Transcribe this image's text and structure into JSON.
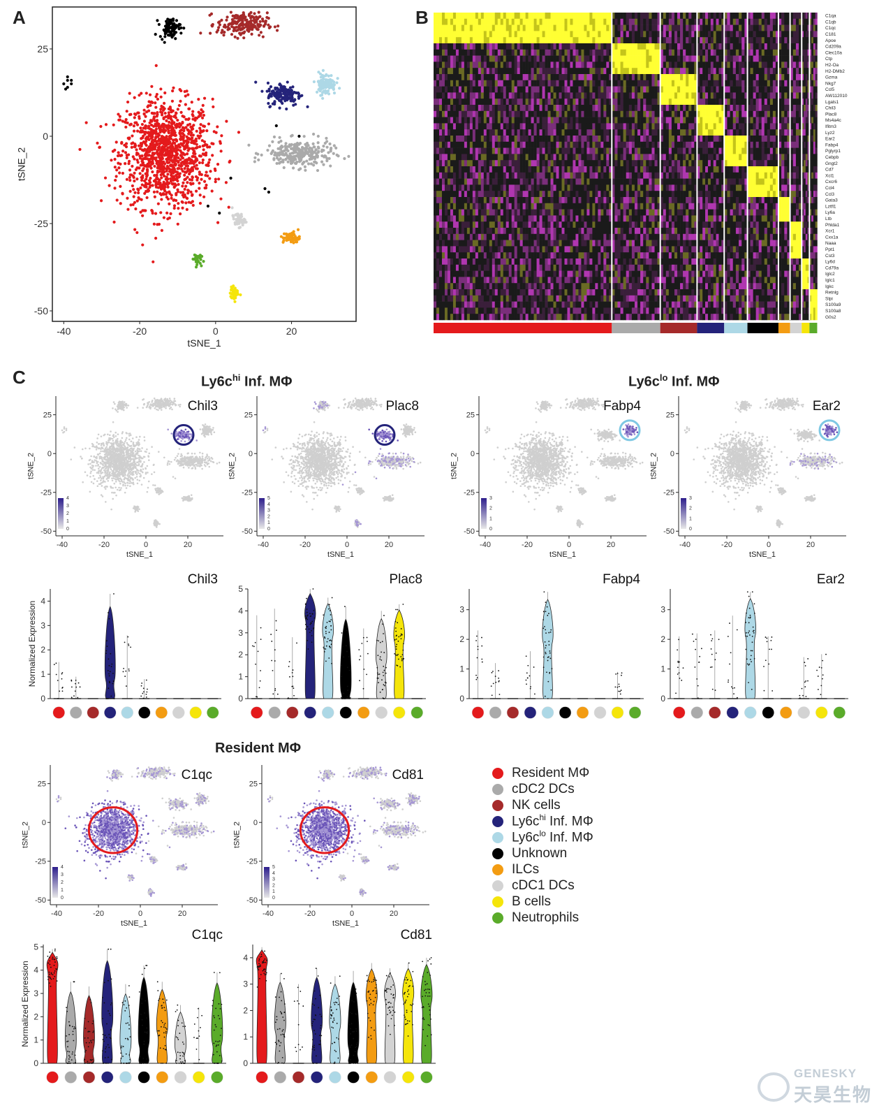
{
  "panels": {
    "a": "A",
    "b": "B",
    "c": "C"
  },
  "titles": {
    "ly6chi": {
      "prefix": "Ly6c",
      "sup": "hi",
      "suffix": " Inf. MΦ"
    },
    "ly6clo": {
      "prefix": "Ly6c",
      "sup": "lo",
      "suffix": " Inf. MΦ"
    },
    "resident": {
      "text": "Resident MΦ"
    }
  },
  "axes": {
    "tsne_x": "tSNE_1",
    "tsne_y": "tSNE_2",
    "violin_y": "Normalized Expression"
  },
  "clusters": [
    {
      "key": "resident",
      "label": "Resident MΦ",
      "color": "#e41a1c"
    },
    {
      "key": "cdc2",
      "label": "cDC2 DCs",
      "color": "#aaaaaa"
    },
    {
      "key": "nk",
      "label": "NK cells",
      "color": "#a52a2a"
    },
    {
      "key": "ly6chi",
      "label": "Ly6chi Inf. MΦ",
      "label_prefix": "Ly6c",
      "label_sup": "hi",
      "label_suffix": " Inf. MΦ",
      "color": "#24237a"
    },
    {
      "key": "ly6clo",
      "label": "Ly6clo Inf. MΦ",
      "label_prefix": "Ly6c",
      "label_sup": "lo",
      "label_suffix": " Inf. MΦ",
      "color": "#add8e6"
    },
    {
      "key": "unknown",
      "label": "Unknown",
      "color": "#000000"
    },
    {
      "key": "ilc",
      "label": "ILCs",
      "color": "#f39c12"
    },
    {
      "key": "cdc1",
      "label": "cDC1 DCs",
      "color": "#d3d3d3"
    },
    {
      "key": "b",
      "label": "B cells",
      "color": "#f5e50a"
    },
    {
      "key": "neut",
      "label": "Neutrophils",
      "color": "#5aab2a"
    }
  ],
  "heatmap_genes": [
    "C1qa",
    "C1qb",
    "C1qc",
    "C181",
    "Apoe",
    "Cd209a",
    "Clec10a",
    "Ctp",
    "H2-Oa",
    "H2-DMb2",
    "Gzma",
    "Nkg7",
    "Ccl5",
    "AW112010",
    "Lgals1",
    "Chil3",
    "Plac8",
    "Ms4a4c",
    "Ifitm3",
    "Lyz2",
    "Ear2",
    "Fabp4",
    "Pglyrp1",
    "Cebpb",
    "Gngt2",
    "Cd7",
    "Xcl1",
    "Cxcr6",
    "Ccl4",
    "Ccl3",
    "Gata3",
    "Lztfl1",
    "Ly6a",
    "Ltb",
    "Phlda1",
    "Xcr1",
    "Cxx1a",
    "Naaa",
    "Ppt1",
    "Cst3",
    "Ly6d",
    "Cd79a",
    "Iglc2",
    "Iglc1",
    "Igkc",
    "Retnlg",
    "Slpi",
    "S100a9",
    "S100a8",
    "G0s2"
  ],
  "chart_data": [
    {
      "type": "scatter",
      "panel": "A",
      "title": "",
      "xlabel": "tSNE_1",
      "ylabel": "tSNE_2",
      "xlim": [
        -43,
        37
      ],
      "ylim": [
        -53,
        37
      ],
      "xticks": [
        -40,
        -20,
        0,
        20
      ],
      "yticks": [
        -50,
        -25,
        0,
        25
      ],
      "clusters": [
        {
          "name": "Resident MΦ",
          "center": [
            -13,
            -5
          ],
          "spread": [
            11,
            14
          ],
          "n": 1200
        },
        {
          "name": "cDC2 DCs",
          "center": [
            22,
            -5
          ],
          "spread": [
            8,
            3.5
          ],
          "n": 260
        },
        {
          "name": "NK cells",
          "center": [
            7,
            32
          ],
          "spread": [
            6,
            3
          ],
          "n": 200
        },
        {
          "name": "Ly6chi Inf. MΦ",
          "center": [
            18,
            12
          ],
          "spread": [
            4,
            3
          ],
          "n": 150
        },
        {
          "name": "Ly6clo Inf. MΦ",
          "center": [
            29,
            15
          ],
          "spread": [
            2.4,
            2.8
          ],
          "n": 110
        },
        {
          "name": "Unknown",
          "center": [
            -12,
            31
          ],
          "spread": [
            2.5,
            2.5
          ],
          "n": 80
        },
        {
          "name": "ILCs",
          "center": [
            20,
            -29
          ],
          "spread": [
            2,
            1.5
          ],
          "n": 70
        },
        {
          "name": "cDC1 DCs",
          "center": [
            6,
            -24
          ],
          "spread": [
            1.5,
            1.8
          ],
          "n": 50
        },
        {
          "name": "B cells",
          "center": [
            5,
            -45
          ],
          "spread": [
            1,
            1.7
          ],
          "n": 50
        },
        {
          "name": "Neutrophils",
          "center": [
            -5,
            -35
          ],
          "spread": [
            1,
            1.5
          ],
          "n": 35
        }
      ]
    },
    {
      "type": "heatmap",
      "panel": "B",
      "rows": 50,
      "column_groups": [
        "Resident MΦ",
        "cDC2 DCs",
        "NK cells",
        "Ly6chi Inf. MΦ",
        "Ly6clo Inf. MΦ",
        "Unknown",
        "ILCs",
        "cDC1 DCs",
        "B cells",
        "Neutrophils"
      ],
      "group_width_fraction": [
        0.46,
        0.125,
        0.095,
        0.07,
        0.06,
        0.08,
        0.03,
        0.03,
        0.02,
        0.02
      ],
      "high_block_rows": [
        [
          0,
          5
        ],
        [
          5,
          10
        ],
        [
          10,
          15
        ],
        [
          15,
          20
        ],
        [
          20,
          25
        ],
        [
          25,
          30
        ],
        [
          30,
          34
        ],
        [
          34,
          40
        ],
        [
          40,
          45
        ],
        [
          45,
          50
        ]
      ]
    },
    {
      "type": "scatter",
      "panel": "C",
      "subtype": "feature-plot",
      "genes": [
        {
          "gene": "Chil3",
          "max": 4,
          "target": "Ly6chi Inf. MΦ",
          "circle": "#24237a"
        },
        {
          "gene": "Plac8",
          "max": 5,
          "target": "Ly6chi Inf. MΦ",
          "circle": "#24237a"
        },
        {
          "gene": "Fabp4",
          "max": 3,
          "target": "Ly6clo Inf. MΦ",
          "circle": "#7ec8e3"
        },
        {
          "gene": "Ear2",
          "max": 3,
          "target": "Ly6clo Inf. MΦ",
          "circle": "#7ec8e3"
        },
        {
          "gene": "C1qc",
          "max": 4,
          "target": "Resident MΦ",
          "circle": "#e41a1c"
        },
        {
          "gene": "Cd81",
          "max": 5,
          "target": "Resident MΦ",
          "circle": "#e41a1c"
        }
      ],
      "xticks": [
        -40,
        -20,
        0,
        20
      ],
      "yticks": [
        -50,
        -25,
        0,
        25
      ]
    },
    {
      "type": "violin",
      "panel": "C",
      "ylabel": "Normalized Expression",
      "categories": [
        "Resident MΦ",
        "cDC2 DCs",
        "NK cells",
        "Ly6chi Inf. MΦ",
        "Ly6clo Inf. MΦ",
        "Unknown",
        "ILCs",
        "cDC1 DCs",
        "B cells",
        "Neutrophils"
      ],
      "genes": [
        {
          "gene": "Chil3",
          "ylim": [
            0,
            4.5
          ],
          "yticks": [
            0,
            1,
            2,
            3,
            4
          ],
          "median": [
            0,
            0,
            0,
            0.8,
            0,
            0,
            0,
            0,
            0,
            0
          ],
          "max": [
            1.5,
            0.9,
            0,
            4.3,
            2.6,
            0.8,
            0,
            0,
            0,
            0
          ]
        },
        {
          "gene": "Plac8",
          "ylim": [
            0,
            5
          ],
          "yticks": [
            0,
            1,
            2,
            3,
            4,
            5
          ],
          "median": [
            0,
            0,
            0,
            3.6,
            2.8,
            0.3,
            0,
            1.6,
            2.6,
            0
          ],
          "max": [
            3.8,
            4.1,
            2.8,
            5.0,
            4.6,
            4.2,
            3.2,
            4.0,
            4.3,
            0
          ]
        },
        {
          "gene": "Fabp4",
          "ylim": [
            0,
            3.7
          ],
          "yticks": [
            0,
            1,
            2,
            3
          ],
          "median": [
            0,
            0,
            0,
            0,
            1.9,
            0,
            0,
            0,
            0,
            0
          ],
          "max": [
            2.3,
            1.2,
            0,
            1.6,
            3.6,
            0,
            0,
            0,
            0.9,
            0
          ]
        },
        {
          "gene": "Ear2",
          "ylim": [
            0,
            3.7
          ],
          "yticks": [
            0,
            1,
            2,
            3
          ],
          "median": [
            0,
            0,
            0,
            0,
            2.1,
            0,
            0,
            0,
            0,
            0
          ],
          "max": [
            2.1,
            2.2,
            2.3,
            2.8,
            3.6,
            2.1,
            0,
            1.4,
            1.5,
            0
          ]
        },
        {
          "gene": "C1qc",
          "ylim": [
            0,
            5.1
          ],
          "yticks": [
            0,
            1,
            2,
            3,
            4,
            5
          ],
          "median": [
            4.0,
            0.6,
            0.7,
            1.6,
            0.6,
            0.8,
            1.3,
            0.5,
            0,
            0.9
          ],
          "max": [
            4.9,
            3.5,
            3.3,
            4.9,
            3.4,
            4.2,
            3.5,
            2.5,
            2.4,
            3.9
          ]
        },
        {
          "gene": "Cd81",
          "ylim": [
            0,
            4.5
          ],
          "yticks": [
            0,
            1,
            2,
            3,
            4
          ],
          "median": [
            3.7,
            1.2,
            0,
            1.3,
            1.3,
            0.6,
            2.3,
            2.4,
            2.4,
            2.3
          ],
          "max": [
            4.4,
            3.4,
            3.0,
            3.6,
            3.3,
            3.5,
            3.8,
            3.6,
            3.8,
            4.0
          ]
        }
      ]
    }
  ],
  "watermark": {
    "en": "GENESKY",
    "cn": "天昊生物"
  }
}
